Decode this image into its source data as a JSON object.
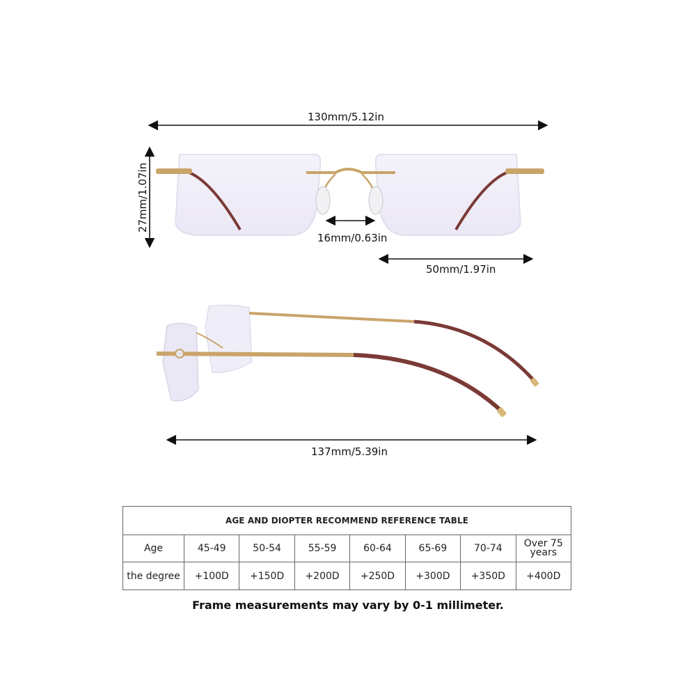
{
  "dimensions": {
    "overall_width": "130mm/5.12in",
    "lens_height": "27mm/1.07in",
    "bridge_width": "16mm/0.63in",
    "lens_width": "50mm/1.97in",
    "temple_length": "137mm/5.39in"
  },
  "colors": {
    "frame_gold": "#c9a46a",
    "temple_tip_brown": "#7a3a36",
    "lens_tint": "#e9e6f6"
  },
  "reference_table": {
    "title": "AGE AND DIOPTER RECOMMEND REFERENCE TABLE",
    "age_label": "Age",
    "degree_label": "the degree",
    "ages": [
      "45-49",
      "50-54",
      "55-59",
      "60-64",
      "65-69",
      "70-74",
      "Over 75 years"
    ],
    "degrees": [
      "+100D",
      "+150D",
      "+200D",
      "+250D",
      "+300D",
      "+350D",
      "+400D"
    ]
  },
  "note": "Frame measurements may vary by 0-1 millimeter."
}
